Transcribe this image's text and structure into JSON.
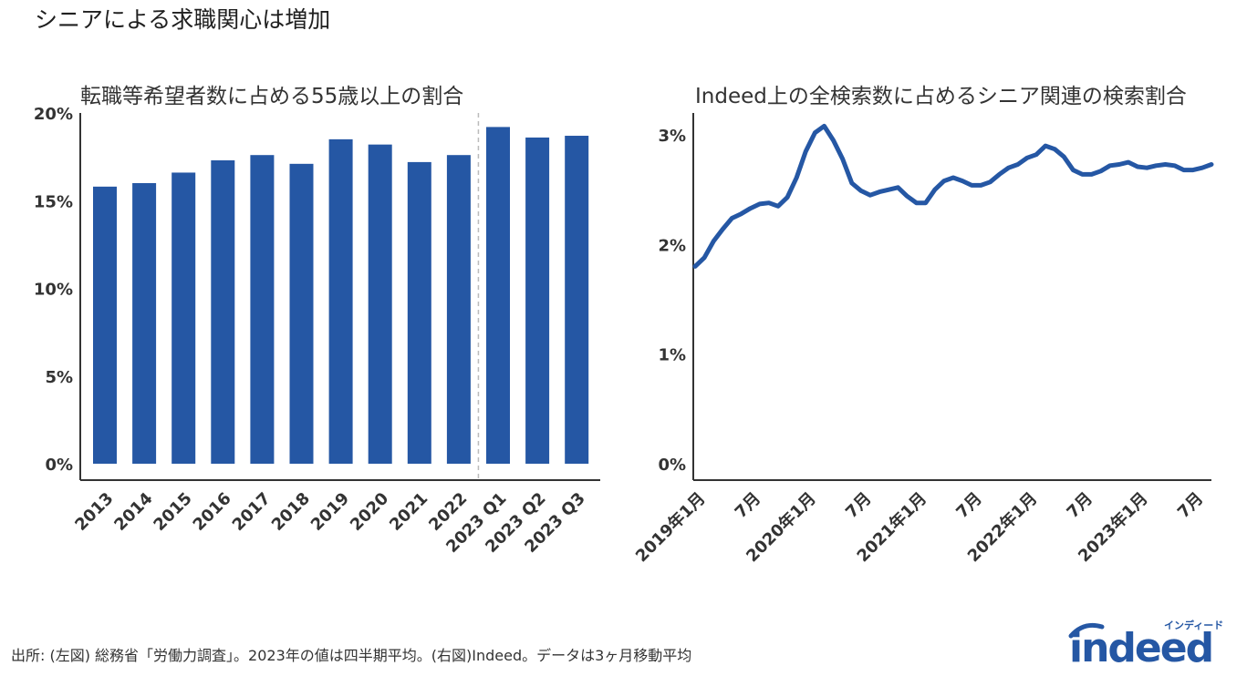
{
  "title": "シニアによる求職関心は増加",
  "source": "出所: (左図) 総務省「労働力調査」。2023年の値は四半期平均。(右図)Indeed。データは3ヶ月移動平均",
  "logo": {
    "name": "indeed",
    "tagline": "インディード"
  },
  "colors": {
    "bar": "#2557a4",
    "line": "#2557a4",
    "axis": "#333333",
    "divider": "#bbbbbb"
  },
  "chart_data": [
    {
      "type": "bar",
      "title": "転職等希望者数に占める55歳以上の割合",
      "categories": [
        "2013",
        "2014",
        "2015",
        "2016",
        "2017",
        "2018",
        "2019",
        "2020",
        "2021",
        "2022",
        "2023 Q1",
        "2023 Q2",
        "2023 Q3"
      ],
      "values": [
        15.8,
        16.0,
        16.6,
        17.3,
        17.6,
        17.1,
        18.5,
        18.2,
        17.2,
        17.6,
        19.2,
        18.6,
        18.7
      ],
      "ylim": [
        0,
        20
      ],
      "yticks": [
        "0%",
        "5%",
        "10%",
        "15%",
        "20%"
      ],
      "divider_after": "2022",
      "grid": false
    },
    {
      "type": "line",
      "title": "Indeed上の全検索数に占めるシニア関連の検索割合",
      "x": [
        "2019-01",
        "2019-02",
        "2019-03",
        "2019-04",
        "2019-05",
        "2019-06",
        "2019-07",
        "2019-08",
        "2019-09",
        "2019-10",
        "2019-11",
        "2019-12",
        "2020-01",
        "2020-02",
        "2020-03",
        "2020-04",
        "2020-05",
        "2020-06",
        "2020-07",
        "2020-08",
        "2020-09",
        "2020-10",
        "2020-11",
        "2020-12",
        "2021-01",
        "2021-02",
        "2021-03",
        "2021-04",
        "2021-05",
        "2021-06",
        "2021-07",
        "2021-08",
        "2021-09",
        "2021-10",
        "2021-11",
        "2021-12",
        "2022-01",
        "2022-02",
        "2022-03",
        "2022-04",
        "2022-05",
        "2022-06",
        "2022-07",
        "2022-08",
        "2022-09",
        "2022-10",
        "2022-11",
        "2022-12",
        "2023-01",
        "2023-02",
        "2023-03",
        "2023-04",
        "2023-05",
        "2023-06",
        "2023-07",
        "2023-08",
        "2023-09"
      ],
      "values": [
        1.8,
        1.88,
        2.03,
        2.14,
        2.24,
        2.28,
        2.33,
        2.37,
        2.38,
        2.35,
        2.43,
        2.61,
        2.85,
        3.02,
        3.08,
        2.95,
        2.78,
        2.56,
        2.49,
        2.45,
        2.48,
        2.5,
        2.52,
        2.44,
        2.38,
        2.38,
        2.5,
        2.58,
        2.61,
        2.58,
        2.54,
        2.54,
        2.57,
        2.64,
        2.7,
        2.73,
        2.79,
        2.82,
        2.9,
        2.87,
        2.8,
        2.68,
        2.64,
        2.64,
        2.67,
        2.72,
        2.73,
        2.75,
        2.71,
        2.7,
        2.72,
        2.73,
        2.72,
        2.68,
        2.68,
        2.7,
        2.73
      ],
      "ylim": [
        0,
        3.2
      ],
      "yticks": [
        "0%",
        "1%",
        "2%",
        "3%"
      ],
      "xtick_labels": [
        {
          "month": "2019-01",
          "label": "2019年1月"
        },
        {
          "month": "2019-07",
          "label": "7月"
        },
        {
          "month": "2020-01",
          "label": "2020年1月"
        },
        {
          "month": "2020-07",
          "label": "7月"
        },
        {
          "month": "2021-01",
          "label": "2021年1月"
        },
        {
          "month": "2021-07",
          "label": "7月"
        },
        {
          "month": "2022-01",
          "label": "2022年1月"
        },
        {
          "month": "2022-07",
          "label": "7月"
        },
        {
          "month": "2023-01",
          "label": "2023年1月"
        },
        {
          "month": "2023-07",
          "label": "7月"
        }
      ],
      "grid": false
    }
  ]
}
